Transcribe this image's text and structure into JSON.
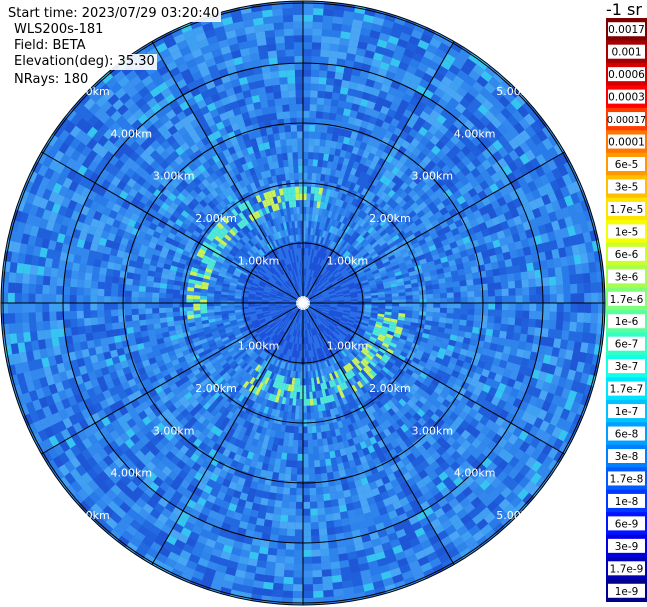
{
  "header": {
    "start_time": "Start time: 2023/07/29 03:20:40",
    "instrument": "WLS200s-181",
    "field": "Field: BETA",
    "elevation": "Elevation(deg): 35.30",
    "nrays": "NRays: 180"
  },
  "colorbar": {
    "units": "-1 sr",
    "labels": [
      "0.0017",
      "0.001",
      "0.0006",
      "0.0003",
      "0.00017",
      "0.0001",
      "6e-5",
      "3e-5",
      "1.7e-5",
      "1e-5",
      "6e-6",
      "3e-6",
      "1.7e-6",
      "1e-6",
      "6e-7",
      "3e-7",
      "1.7e-7",
      "1e-7",
      "6e-8",
      "3e-8",
      "1.7e-8",
      "1e-8",
      "6e-9",
      "3e-9",
      "1.7e-9",
      "1e-9"
    ],
    "colors": [
      "#7f0000",
      "#a80000",
      "#d40000",
      "#ff0000",
      "#ff3c00",
      "#ff7700",
      "#ff9900",
      "#ffbf00",
      "#ffe400",
      "#f4ff00",
      "#ccff2a",
      "#a6ff50",
      "#80ff77",
      "#5aff9d",
      "#33ffc4",
      "#0fffe8",
      "#00e4ff",
      "#00c2ff",
      "#00a0ff",
      "#0080ff",
      "#005cff",
      "#0038ff",
      "#0014ff",
      "#0000e1",
      "#0000b4",
      "#00008b"
    ]
  },
  "chart_data": {
    "type": "heatmap",
    "projection": "polar-ppi",
    "rings_km": [
      1,
      2,
      3,
      4,
      5
    ],
    "ring_labels": [
      "1.00km",
      "2.00km",
      "3.00km",
      "4.00km",
      "5.00km"
    ],
    "max_range_km": 5.0,
    "spoke_angles_deg": [
      0,
      30,
      60,
      90,
      120,
      150,
      180,
      210,
      240,
      270,
      300,
      330
    ],
    "dominant_color": "#2a7bea",
    "features": [
      {
        "kind": "aerosol-band",
        "range_km": [
          1.6,
          2.0
        ],
        "azimuth_deg": [
          260,
          370
        ],
        "colors": [
          "#4fe8d8",
          "#c8f25a"
        ]
      },
      {
        "kind": "aerosol-band",
        "range_km": [
          1.3,
          1.7
        ],
        "azimuth_deg": [
          95,
          215
        ],
        "colors": [
          "#4fe8d8",
          "#c8f25a"
        ]
      }
    ]
  }
}
